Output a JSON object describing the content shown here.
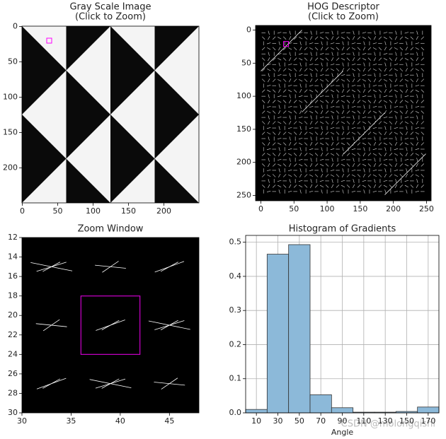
{
  "chart_data": [
    {
      "type": "image",
      "title": "Gray Scale Image",
      "subtitle": "(Click to Zoom)",
      "xlim": [
        -0.5,
        249.5
      ],
      "ylim": [
        249.5,
        -0.5
      ],
      "xticks": [
        0,
        50,
        100,
        150,
        200
      ],
      "yticks": [
        0,
        50,
        100,
        150,
        200
      ],
      "marker": [
        38,
        20
      ],
      "marker_color": "#ff00ff"
    },
    {
      "type": "hog",
      "title": "HOG Descriptor",
      "subtitle": "(Click to Zoom)",
      "xlim": [
        -8,
        257
      ],
      "ylim": [
        258,
        -7
      ],
      "xticks": [
        0,
        50,
        100,
        150,
        200,
        250
      ],
      "yticks": [
        0,
        50,
        100,
        150,
        200,
        250
      ],
      "marker": [
        38,
        21
      ],
      "marker_color": "#ff00ff"
    },
    {
      "type": "zoom",
      "title": "Zoom Window",
      "xlim": [
        30,
        48
      ],
      "ylim": [
        30,
        12
      ],
      "xticks": [
        30,
        35,
        40,
        45
      ],
      "yticks": [
        12,
        14,
        16,
        18,
        20,
        22,
        24,
        26,
        28,
        30
      ],
      "cell_x": [
        33,
        39,
        45
      ],
      "cell_y": [
        15,
        21,
        27
      ],
      "highlight_x": [
        36,
        42
      ],
      "highlight_y": [
        18,
        24
      ],
      "highlight_color": "#cc00cc"
    },
    {
      "type": "histogram",
      "title": "Histogram of Gradients",
      "xlabel": "Angle",
      "bins": [
        0,
        20,
        40,
        60,
        80,
        100,
        120,
        140,
        160,
        180
      ],
      "values": [
        0.01,
        0.465,
        0.493,
        0.053,
        0.015,
        0.002,
        0.002,
        0.004,
        0.017
      ],
      "color": "#8cb9d9",
      "xlim": [
        0,
        180
      ],
      "ylim": [
        0,
        0.52
      ],
      "xticks": [
        10,
        30,
        50,
        70,
        90,
        110,
        130,
        150,
        170
      ],
      "yticks": [
        {
          "value": 0,
          "label": "0.0"
        },
        0.1,
        0.2,
        0.3,
        0.4,
        0.5
      ],
      "grid": true,
      "watermark": "CSDN @molongqishi"
    }
  ]
}
